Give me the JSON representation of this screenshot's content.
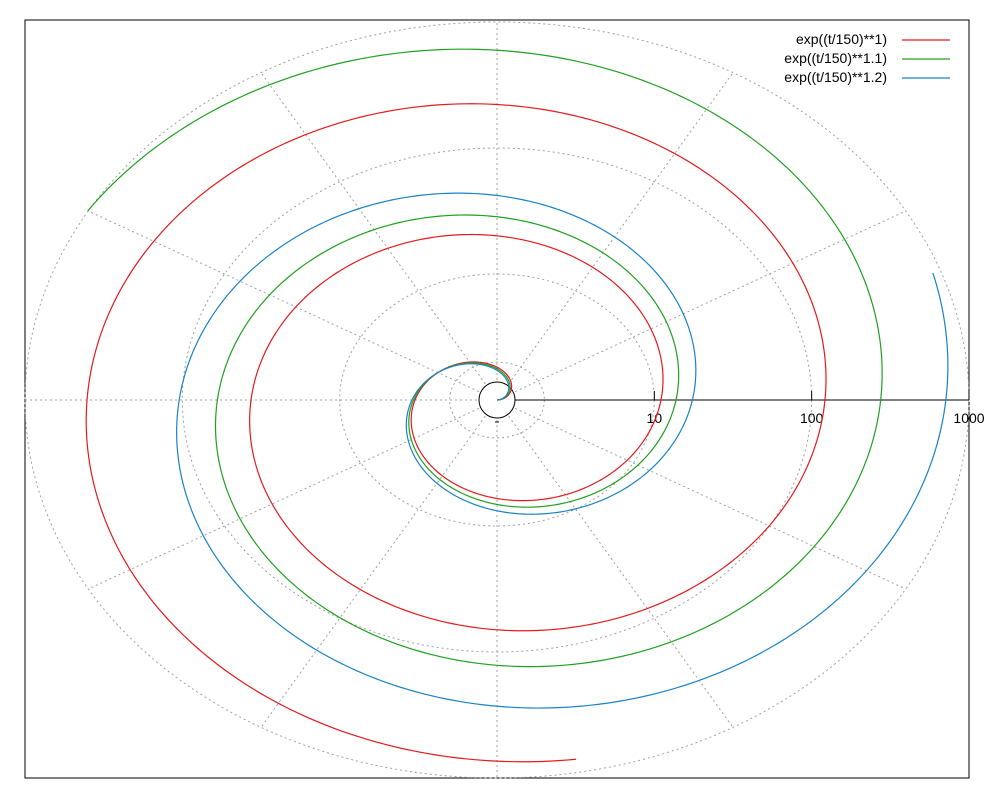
{
  "chart_data": {
    "type": "line",
    "coordinate_system": "polar",
    "radial_scale": "log",
    "radial_range": [
      1,
      1000
    ],
    "radial_ticks": [
      "10",
      "100",
      "1000"
    ],
    "theta_range_degrees": [
      0,
      900
    ],
    "grid": true,
    "grid_spokes_degrees": 30,
    "legend_placement": "top-right",
    "series": [
      {
        "name": "exp((t/150)**1)",
        "color": "#e41a1c",
        "exponent": 1.0,
        "t_range": [
          0,
          1000
        ]
      },
      {
        "name": "exp((t/150)**1.1)",
        "color": "#20a020",
        "exponent": 1.1,
        "t_range": [
          0,
          870
        ]
      },
      {
        "name": "exp((t/150)**1.2)",
        "color": "#1a82c8",
        "exponent": 1.2,
        "t_range": [
          0,
          740
        ]
      }
    ]
  }
}
